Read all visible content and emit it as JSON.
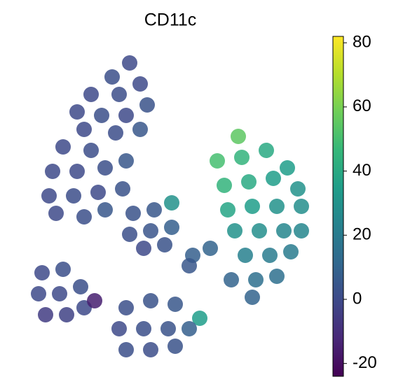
{
  "chart_data": {
    "type": "scatter",
    "title": "CD11c",
    "xlim": [
      0,
      420
    ],
    "ylim": [
      0,
      470
    ],
    "x": [
      150,
      125,
      95,
      135,
      165,
      75,
      110,
      145,
      175,
      85,
      130,
      165,
      55,
      95,
      40,
      75,
      115,
      145,
      35,
      70,
      105,
      140,
      45,
      85,
      115,
      155,
      185,
      210,
      150,
      180,
      210,
      170,
      200,
      305,
      275,
      310,
      345,
      375,
      285,
      320,
      355,
      390,
      290,
      325,
      360,
      395,
      300,
      335,
      370,
      395,
      315,
      350,
      380,
      330,
      360,
      325,
      295,
      240,
      235,
      265,
      25,
      55,
      20,
      50,
      80,
      30,
      60,
      85,
      100,
      145,
      180,
      215,
      250,
      135,
      170,
      205,
      235,
      145,
      180,
      215
    ],
    "y": [
      440,
      420,
      395,
      395,
      410,
      370,
      365,
      365,
      380,
      345,
      340,
      345,
      320,
      315,
      285,
      285,
      290,
      300,
      250,
      250,
      255,
      260,
      225,
      220,
      230,
      225,
      230,
      240,
      195,
      200,
      205,
      175,
      180,
      335,
      300,
      305,
      315,
      290,
      265,
      270,
      275,
      260,
      230,
      235,
      235,
      235,
      200,
      200,
      200,
      200,
      165,
      165,
      170,
      130,
      135,
      105,
      130,
      165,
      150,
      175,
      140,
      145,
      110,
      110,
      120,
      80,
      80,
      90,
      100,
      90,
      100,
      95,
      75,
      60,
      60,
      60,
      60,
      30,
      30,
      35
    ],
    "values": [
      0,
      2,
      0,
      1,
      0,
      0,
      2,
      0,
      3,
      0,
      1,
      5,
      0,
      1,
      0,
      0,
      2,
      5,
      0,
      1,
      0,
      3,
      0,
      2,
      5,
      3,
      5,
      30,
      2,
      4,
      8,
      0,
      3,
      55,
      50,
      45,
      40,
      35,
      45,
      40,
      35,
      30,
      38,
      35,
      30,
      28,
      30,
      28,
      25,
      25,
      22,
      20,
      20,
      15,
      15,
      10,
      10,
      8,
      5,
      10,
      0,
      2,
      0,
      0,
      2,
      -5,
      -3,
      0,
      -15,
      2,
      3,
      5,
      35,
      0,
      2,
      3,
      8,
      2,
      1,
      3
    ],
    "colorbar": {
      "clim": [
        -24,
        82
      ],
      "ticks": [
        -20,
        0,
        20,
        40,
        60,
        80
      ],
      "colormap": [
        "#440154",
        "#482878",
        "#3e4989",
        "#31688e",
        "#26828e",
        "#1f9e89",
        "#35b779",
        "#6ece58",
        "#b5de2b",
        "#fde725"
      ]
    },
    "marker_size": 11
  }
}
